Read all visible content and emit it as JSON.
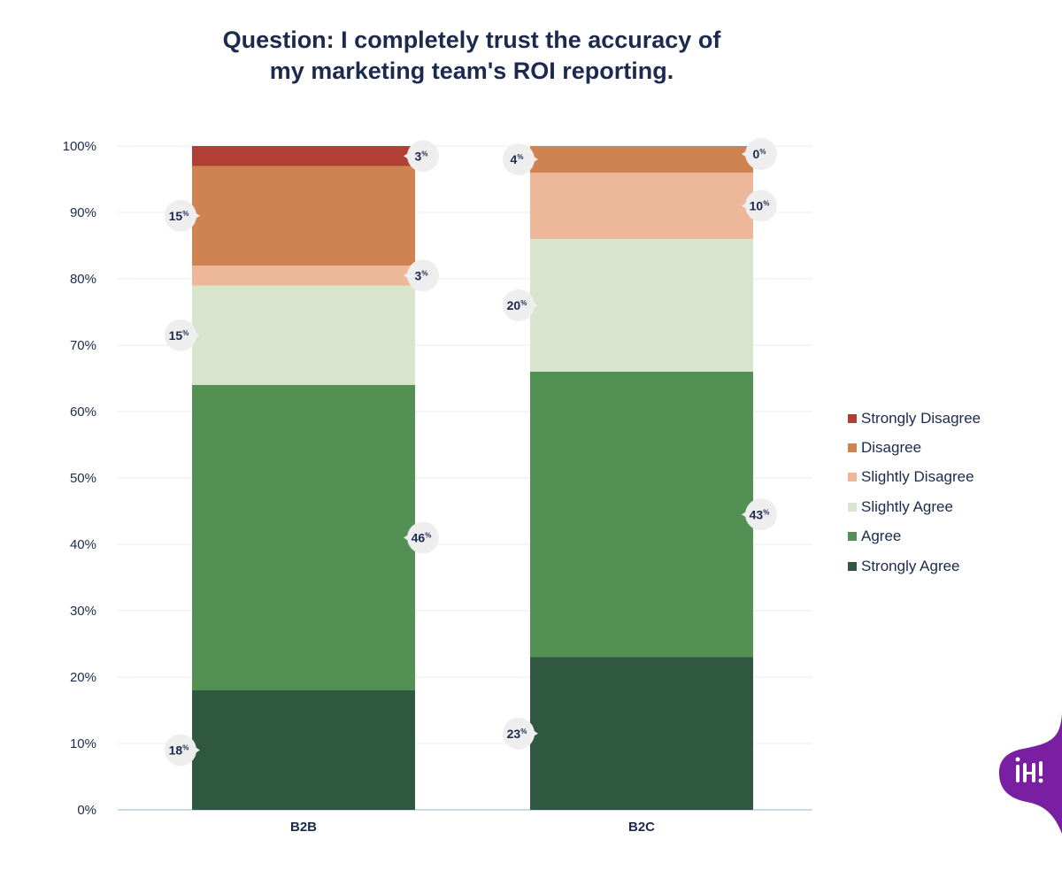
{
  "chart_data": {
    "type": "bar",
    "stacked": true,
    "title_lines": [
      "Question: I completely trust the accuracy of",
      "my marketing team's ROI reporting."
    ],
    "categories": [
      "B2B",
      "B2C"
    ],
    "yticks": [
      "0%",
      "10%",
      "20%",
      "30%",
      "40%",
      "50%",
      "60%",
      "70%",
      "80%",
      "90%",
      "100%"
    ],
    "ylim": [
      0,
      100
    ],
    "value_suffix": "%",
    "grid": true,
    "legend_position": "right",
    "series": [
      {
        "name": "Strongly Agree",
        "color": "#30573f",
        "values": [
          18,
          23
        ]
      },
      {
        "name": "Agree",
        "color": "#529153",
        "values": [
          46,
          43
        ]
      },
      {
        "name": "Slightly Agree",
        "color": "#d8e5cc",
        "values": [
          15,
          20
        ]
      },
      {
        "name": "Slightly Disagree",
        "color": "#edb799",
        "values": [
          3,
          10
        ]
      },
      {
        "name": "Disagree",
        "color": "#ce8350",
        "values": [
          15,
          4
        ]
      },
      {
        "name": "Strongly Disagree",
        "color": "#b13f36",
        "values": [
          3,
          0
        ]
      }
    ],
    "legend_order": [
      "Strongly Disagree",
      "Disagree",
      "Slightly Disagree",
      "Slightly Agree",
      "Agree",
      "Strongly Agree"
    ]
  },
  "logo_icon": "brand-logo-icon",
  "colors": {
    "text": "#1b2a4e",
    "grid": "#e6edf5",
    "axis": "#c9dcee",
    "badge": "#eeeeee",
    "logo": "#7b1fa2"
  }
}
